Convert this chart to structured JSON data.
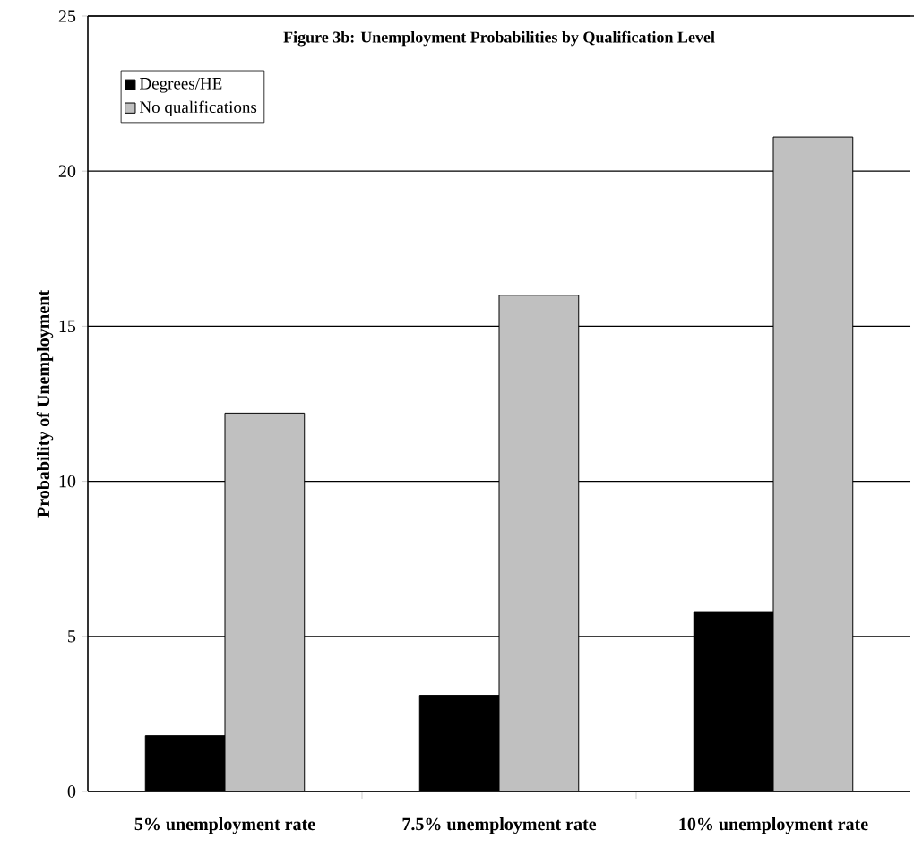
{
  "chart_data": {
    "type": "bar",
    "title": "Figure 3b: Unemployment Probabilities by Qualification Level",
    "ylabel": "Probability of Unemployment",
    "categories": [
      "5%  unemployment rate",
      "7.5% unemployment rate",
      "10% unemployment rate"
    ],
    "series": [
      {
        "name": "Degrees/HE",
        "color": "#000000",
        "values": [
          1.8,
          3.1,
          5.8
        ]
      },
      {
        "name": "No qualifications",
        "color": "#c0c0c0",
        "values": [
          12.2,
          16.0,
          21.1
        ]
      }
    ],
    "ylim": [
      0,
      25
    ],
    "yticks": [
      0,
      5,
      10,
      15,
      20,
      25
    ],
    "grid": "y",
    "legend": "top left"
  }
}
